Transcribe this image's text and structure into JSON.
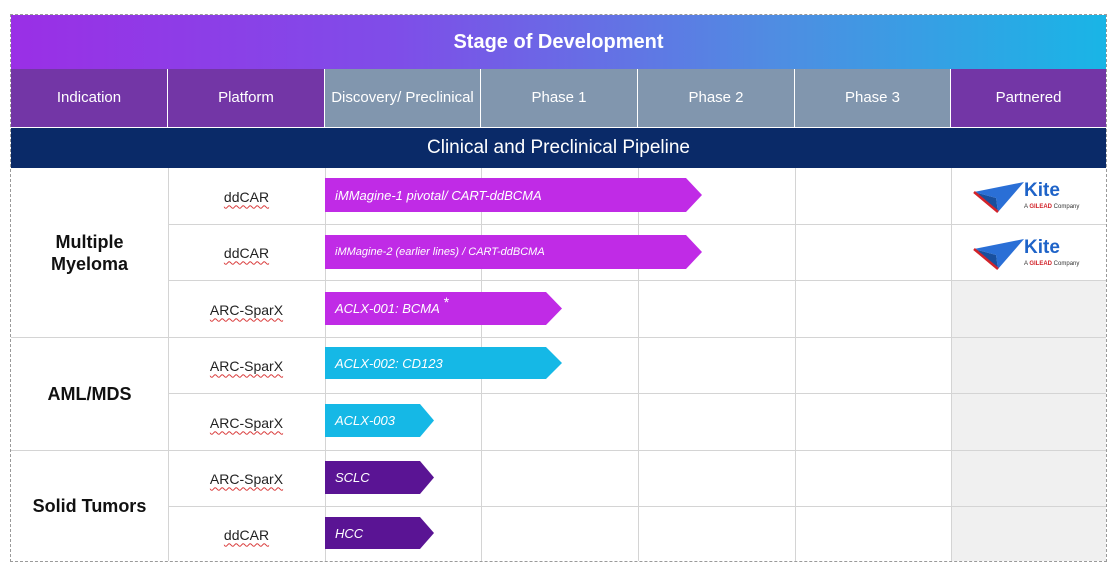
{
  "header": {
    "title": "Stage of Development",
    "columns": [
      "Indication",
      "Platform",
      "Discovery/ Preclinical",
      "Phase 1",
      "Phase 2",
      "Phase 3",
      "Partnered"
    ]
  },
  "section": {
    "title": "Clinical and Preclinical Pipeline"
  },
  "indications": [
    "Multiple Myeloma",
    "AML/MDS",
    "Solid Tumors"
  ],
  "rows": [
    {
      "platform": "ddCAR",
      "program": "iMMagine-1 pivotal/ CART-ddBCMA",
      "stage": "Phase 2",
      "color": "#c02be6",
      "partner": "Kite"
    },
    {
      "platform": "ddCAR",
      "program": "iMMagine-2 (earlier lines) / CART-ddBCMA",
      "stage": "Phase 2",
      "color": "#c02be6",
      "partner": "Kite"
    },
    {
      "platform": "ARC-SparX",
      "program": "ACLX-001: BCMA",
      "note": "*",
      "stage": "Phase 1",
      "color": "#c02be6",
      "partner": ""
    },
    {
      "platform": "ARC-SparX",
      "program": "ACLX-002: CD123",
      "stage": "Phase 1",
      "color": "#15b8e6",
      "partner": ""
    },
    {
      "platform": "ARC-SparX",
      "program": "ACLX-003",
      "stage": "Discovery/ Preclinical",
      "color": "#15b8e6",
      "partner": ""
    },
    {
      "platform": "ARC-SparX",
      "program": "SCLC",
      "stage": "Discovery/ Preclinical",
      "color": "#5a1494",
      "partner": ""
    },
    {
      "platform": "ddCAR",
      "program": "HCC",
      "stage": "Discovery/ Preclinical",
      "color": "#5a1494",
      "partner": ""
    }
  ],
  "partner_logo": {
    "name": "Kite",
    "tagline_prefix": "A ",
    "tagline_brand": "GILEAD",
    "tagline_suffix": " Company",
    "colors": {
      "wordmark": "#1e63c8",
      "accent": "#d2232a"
    }
  }
}
